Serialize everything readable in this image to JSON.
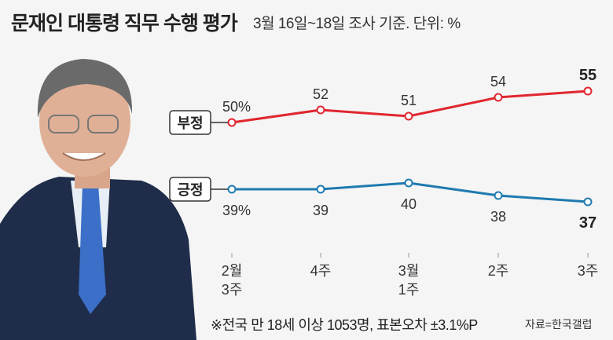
{
  "header": {
    "title": "문재인 대통령 직무 수행 평가",
    "subtitle": "3월 16일~18일 조사 기준. 단위: %"
  },
  "footer": {
    "note": "※전국 만 18세 이상 1053명, 표본오차 ±3.1%P",
    "source": "자료=한국갤럽"
  },
  "chart_data": {
    "type": "line",
    "title": "문재인 대통령 직무 수행 평가",
    "categories": [
      [
        "2월",
        "3주"
      ],
      [
        "4주"
      ],
      [
        "3월",
        "1주"
      ],
      [
        "2주"
      ],
      [
        "3주"
      ]
    ],
    "series": [
      {
        "name": "부정",
        "color": "#e0262f",
        "values": [
          50,
          52,
          51,
          54,
          55
        ],
        "labels": [
          "50%",
          "52",
          "51",
          "54",
          "55"
        ]
      },
      {
        "name": "긍정",
        "color": "#1f7ab0",
        "values": [
          39,
          39,
          40,
          38,
          37
        ],
        "labels": [
          "39%",
          "39",
          "40",
          "38",
          "37"
        ]
      }
    ],
    "unit": "%",
    "grid": false,
    "legend": "inline-left"
  }
}
